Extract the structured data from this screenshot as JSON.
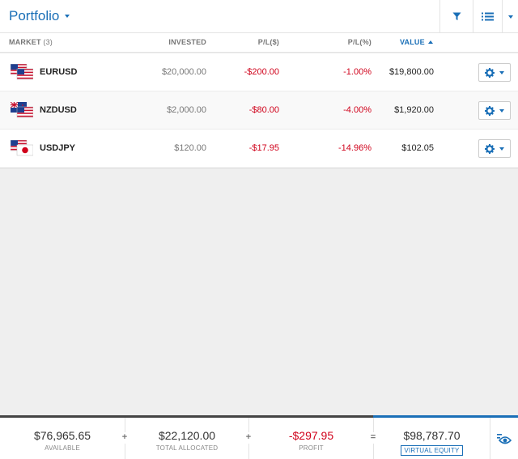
{
  "header": {
    "title": "Portfolio"
  },
  "columns": {
    "market": "MARKET",
    "market_count": "(3)",
    "invested": "INVESTED",
    "pl": "P/L($)",
    "pl_pct": "P/L(%)",
    "value": "VALUE"
  },
  "rows": [
    {
      "symbol": "EURUSD",
      "flags": [
        "us",
        "eu"
      ],
      "invested": "$20,000.00",
      "pl": "-$200.00",
      "pl_pct": "-1.00%",
      "value": "$19,800.00"
    },
    {
      "symbol": "NZDUSD",
      "flags": [
        "us",
        "nz"
      ],
      "invested": "$2,000.00",
      "pl": "-$80.00",
      "pl_pct": "-4.00%",
      "value": "$1,920.00"
    },
    {
      "symbol": "USDJPY",
      "flags": [
        "jp",
        "us"
      ],
      "invested": "$120.00",
      "pl": "-$17.95",
      "pl_pct": "-14.96%",
      "value": "$102.05"
    }
  ],
  "footer": {
    "available_value": "$76,965.65",
    "available_label": "AVAILABLE",
    "op1": "+",
    "allocated_value": "$22,120.00",
    "allocated_label": "TOTAL ALLOCATED",
    "op2": "+",
    "profit_value": "-$297.95",
    "profit_label": "PROFIT",
    "op3": "=",
    "equity_value": "$98,787.70",
    "equity_label": "VIRTUAL EQUITY"
  },
  "colors": {
    "accent": "#1a6fb7",
    "negative": "#d0021b"
  },
  "icons": [
    "filter-icon",
    "list-icon",
    "chevron-down-icon",
    "gear-icon",
    "eye-icon"
  ]
}
